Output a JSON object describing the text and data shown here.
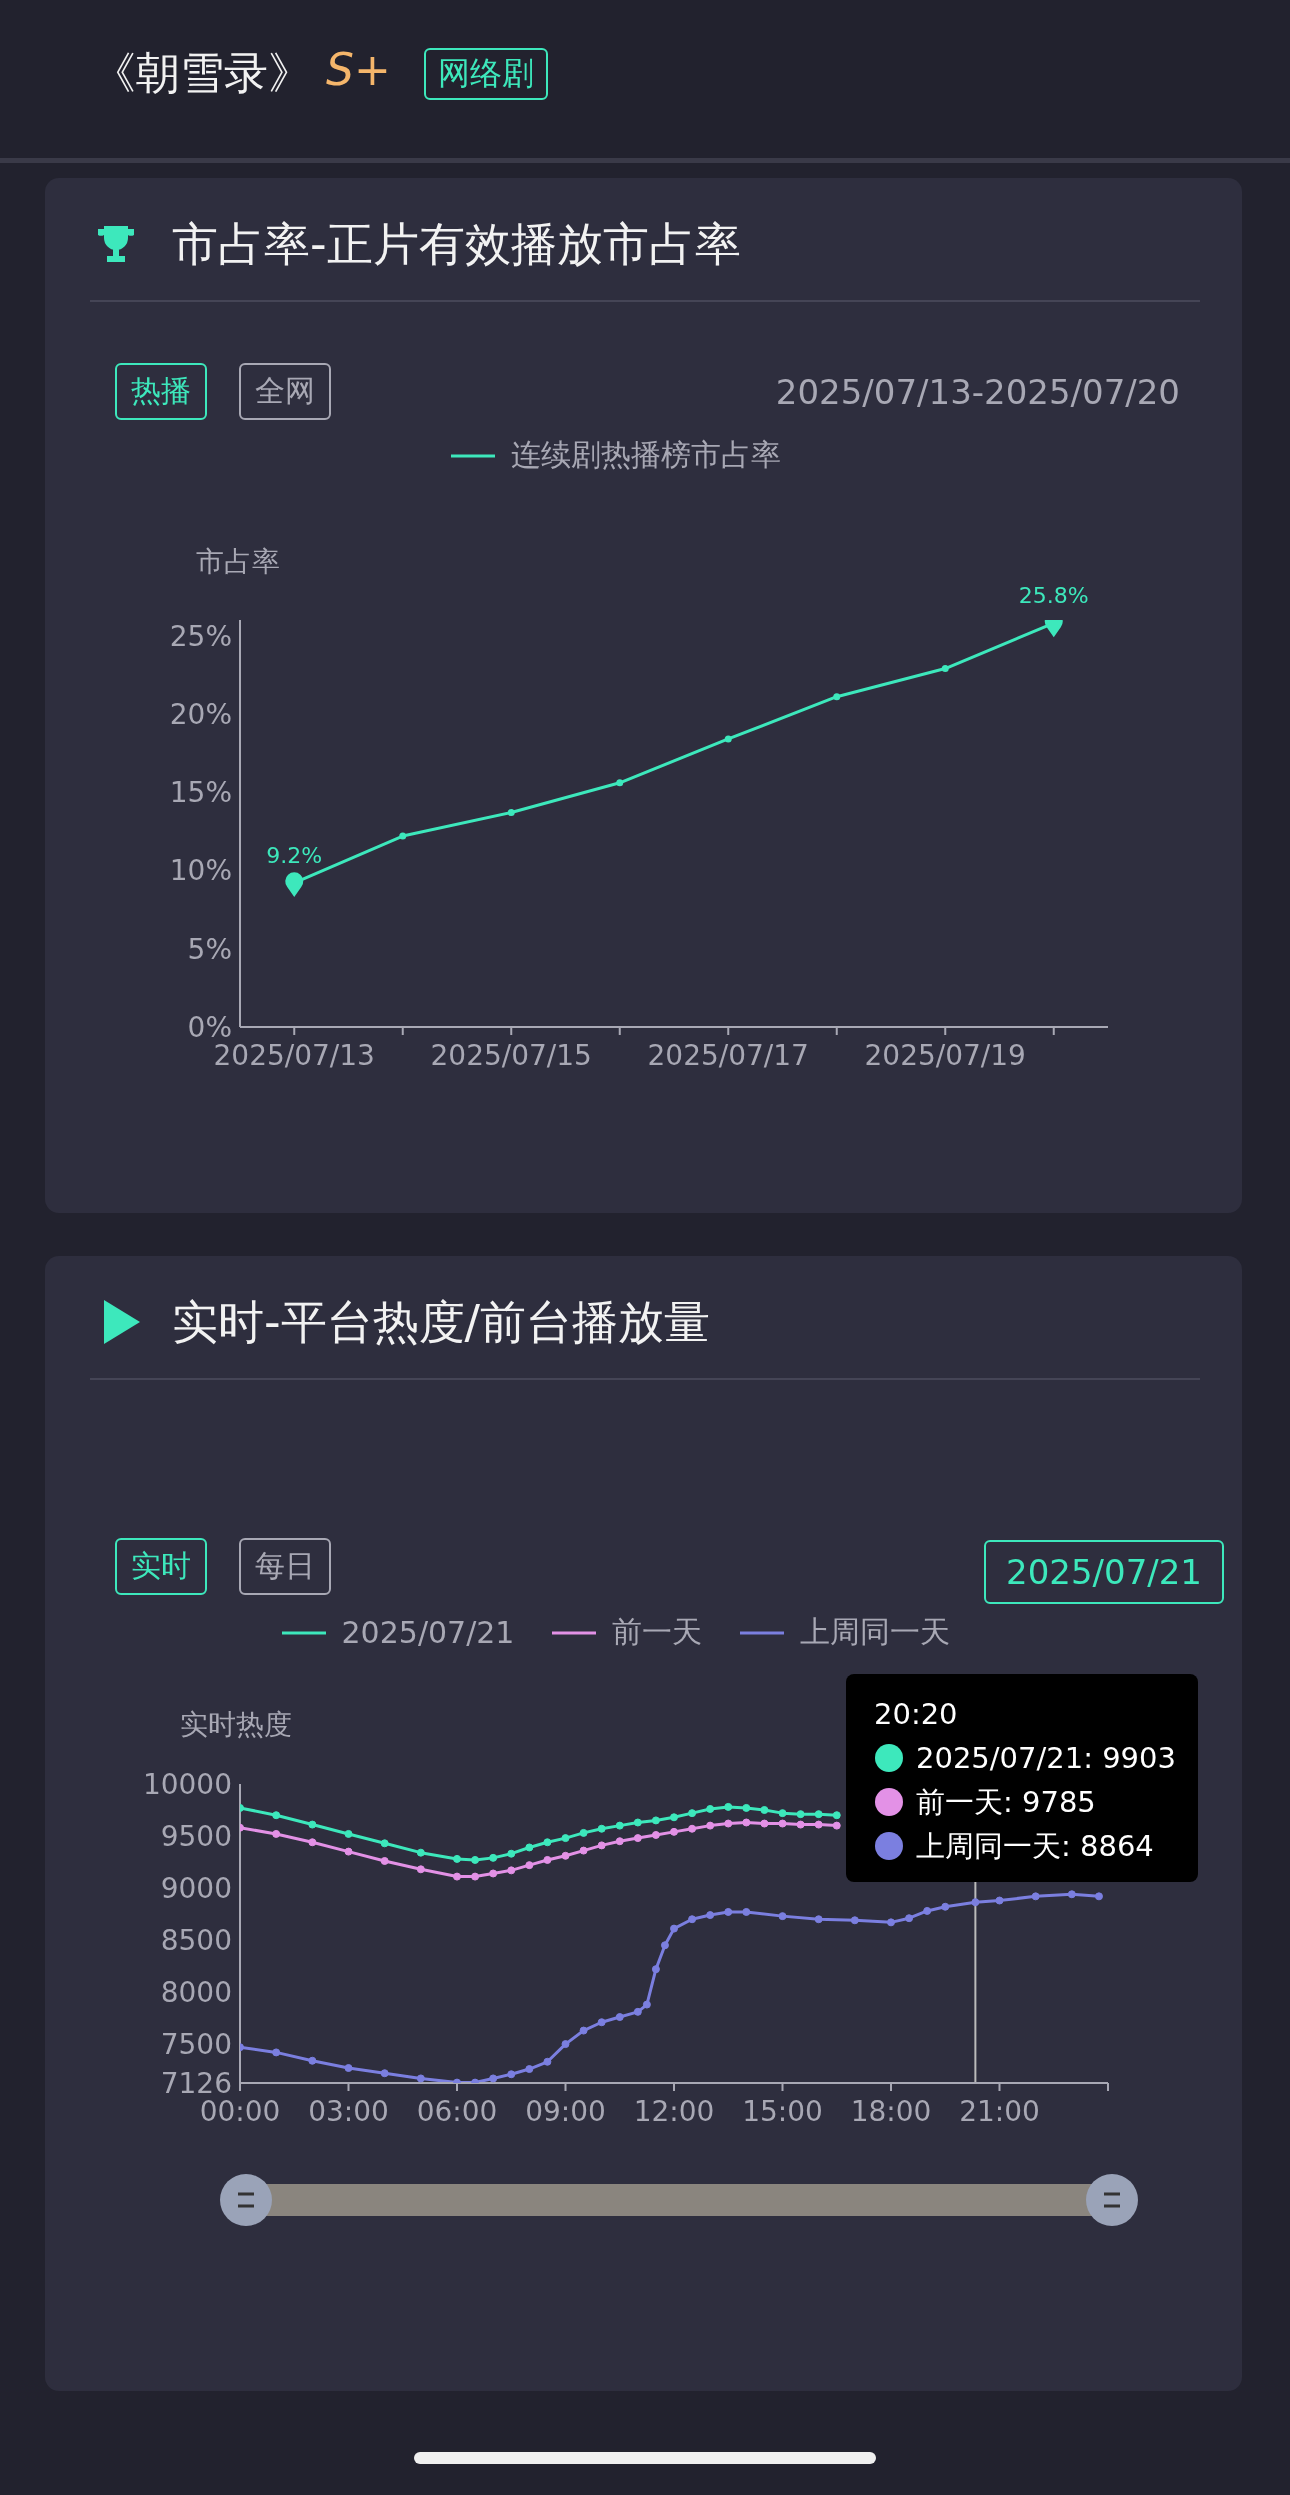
{
  "chart_data": [
    {
      "type": "line",
      "title": "市占率-正片有效播放市占率",
      "ylabel": "市占率",
      "annotations": [
        "《朝雪录》",
        "S+",
        "网络剧",
        "热播",
        "全网",
        "2025/07/13-2025/07/20"
      ],
      "categories": [
        "2025/07/13",
        null,
        "2025/07/15",
        null,
        "2025/07/17",
        null,
        "2025/07/19",
        null
      ],
      "series": [
        {
          "name": "连续剧热播榜市占率",
          "color": "#3de8bc",
          "values": [
            9.2,
            12.2,
            13.7,
            15.6,
            18.4,
            21.1,
            22.9,
            25.8
          ],
          "value_labels": [
            "9.2%",
            null,
            null,
            null,
            null,
            null,
            null,
            "25.8%"
          ]
        }
      ],
      "ylim": [
        0,
        26
      ],
      "yticks": [
        {
          "value": 0,
          "label": "0%"
        },
        {
          "value": 5,
          "label": "5%"
        },
        {
          "value": 10,
          "label": "10%"
        },
        {
          "value": 15,
          "label": "15%"
        },
        {
          "value": 20,
          "label": "20%"
        },
        {
          "value": 25,
          "label": "25%"
        }
      ],
      "legend": "top",
      "marker": "circle",
      "grid": false
    },
    {
      "type": "line",
      "title": "实时-平台热度/前台播放量",
      "ylabel": "实时热度",
      "annotations": [
        "实时",
        "每日",
        "2025/07/21",
        "20:20",
        "2025/07/21: 9903",
        "前一天: 9785",
        "上周同一天: 8864"
      ],
      "series": [
        {
          "name": "2025/07/21",
          "color": "#3de8bc",
          "x": [
            0,
            1,
            2,
            3,
            4,
            5,
            6,
            6.5,
            7,
            7.5,
            8,
            8.5,
            9,
            9.5,
            10,
            10.5,
            11,
            11.5,
            12,
            12.5,
            13,
            13.5,
            14,
            14.5,
            15,
            15.5,
            16,
            16.5
          ],
          "values": [
            9770,
            9700,
            9610,
            9520,
            9430,
            9340,
            9280,
            9270,
            9290,
            9330,
            9390,
            9440,
            9480,
            9530,
            9570,
            9600,
            9630,
            9650,
            9680,
            9720,
            9760,
            9780,
            9770,
            9750,
            9720,
            9710,
            9710,
            9700
          ]
        },
        {
          "name": "前一天",
          "color": "#e391e6",
          "x": [
            0,
            1,
            2,
            3,
            4,
            5,
            6,
            6.5,
            7,
            7.5,
            8,
            8.5,
            9,
            9.5,
            10,
            10.5,
            11,
            11.5,
            12,
            12.5,
            13,
            13.5,
            14,
            14.5,
            15,
            15.5,
            16,
            16.5
          ],
          "values": [
            9580,
            9520,
            9440,
            9350,
            9260,
            9180,
            9110,
            9110,
            9140,
            9170,
            9220,
            9270,
            9310,
            9360,
            9410,
            9450,
            9480,
            9510,
            9540,
            9570,
            9600,
            9620,
            9630,
            9620,
            9620,
            9610,
            9610,
            9600
          ]
        },
        {
          "name": "上周同一天",
          "color": "#7b7fe0",
          "x": [
            0,
            1,
            2,
            3,
            4,
            5,
            6,
            6.5,
            7,
            7.5,
            8,
            8.5,
            9,
            9.5,
            10,
            10.5,
            11,
            11.25,
            11.5,
            11.75,
            12,
            12.5,
            13,
            13.5,
            14,
            15,
            16,
            17,
            18,
            18.5,
            19,
            19.5,
            20.333,
            21,
            22,
            23,
            23.75
          ],
          "values": [
            7470,
            7420,
            7340,
            7270,
            7220,
            7170,
            7130,
            7130,
            7170,
            7210,
            7260,
            7330,
            7500,
            7630,
            7710,
            7760,
            7810,
            7880,
            8220,
            8450,
            8610,
            8700,
            8740,
            8770,
            8770,
            8730,
            8700,
            8690,
            8670,
            8710,
            8780,
            8820,
            8864,
            8880,
            8920,
            8940,
            8920
          ]
        }
      ],
      "xlim": [
        0,
        24
      ],
      "xticks": [
        {
          "value": 0,
          "label": "00:00"
        },
        {
          "value": 3,
          "label": "03:00"
        },
        {
          "value": 6,
          "label": "06:00"
        },
        {
          "value": 9,
          "label": "09:00"
        },
        {
          "value": 12,
          "label": "12:00"
        },
        {
          "value": 15,
          "label": "15:00"
        },
        {
          "value": 18,
          "label": "18:00"
        },
        {
          "value": 21,
          "label": "21:00"
        },
        {
          "value": 24,
          "label": null
        }
      ],
      "ylim": [
        7126,
        10000
      ],
      "yticks": [
        7126,
        7500,
        8000,
        8500,
        9000,
        9500,
        10000
      ],
      "ref_lines": [
        {
          "axis": "x",
          "value": 20.333,
          "label": null,
          "color": "#bbbbbb"
        }
      ],
      "legend": "top",
      "marker": "circle",
      "grid": false
    }
  ]
}
